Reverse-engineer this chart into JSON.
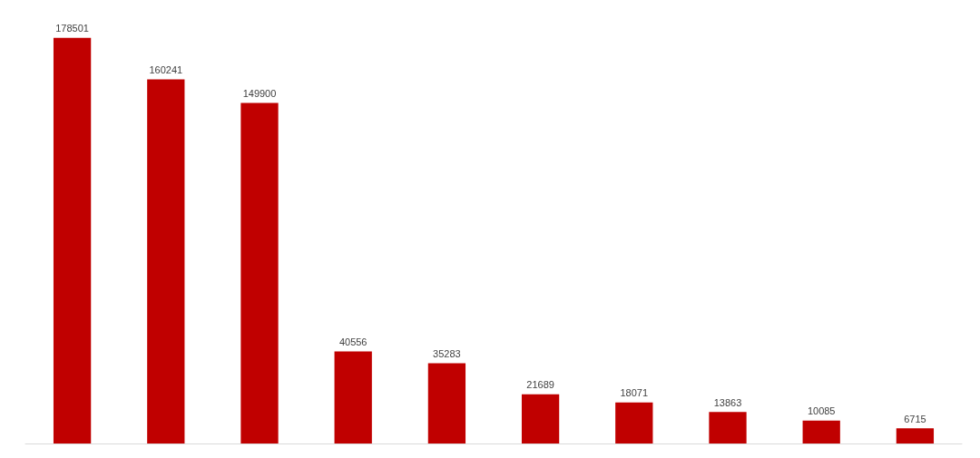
{
  "chart_data": {
    "type": "bar",
    "categories": [
      null,
      null,
      null,
      null,
      null,
      null,
      null,
      null,
      null,
      null
    ],
    "values": [
      178501,
      160241,
      149900,
      40556,
      35283,
      21689,
      18071,
      13863,
      10085,
      6715
    ],
    "color": "#c00000",
    "data_labels": true
  }
}
